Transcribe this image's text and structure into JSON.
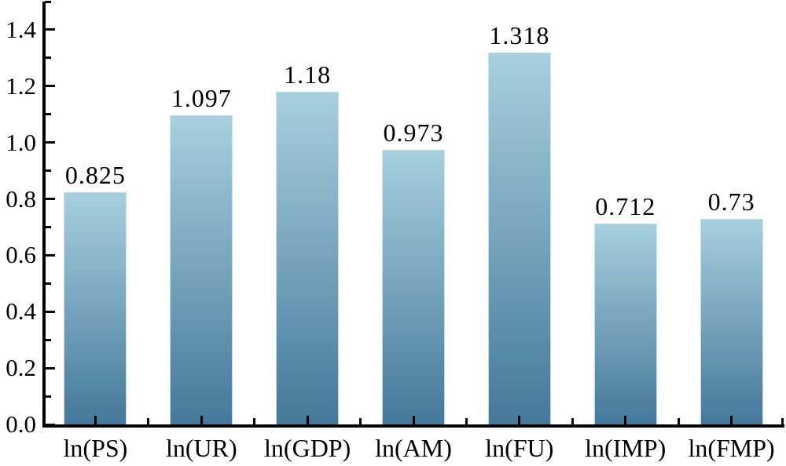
{
  "chart_data": {
    "type": "bar",
    "categories": [
      "ln(PS)",
      "ln(UR)",
      "ln(GDP)",
      "ln(AM)",
      "ln(FU)",
      "ln(IMP)",
      "ln(FMP)"
    ],
    "values": [
      0.825,
      1.097,
      1.18,
      0.973,
      1.318,
      0.712,
      0.73
    ],
    "data_labels": [
      "0.825",
      "1.097",
      "1.18",
      "0.973",
      "1.318",
      "0.712",
      "0.73"
    ],
    "title": "",
    "xlabel": "",
    "ylabel": "",
    "ylim": [
      0,
      1.5
    ],
    "yticks_major": [
      0.0,
      0.2,
      0.4,
      0.6,
      0.8,
      1.0,
      1.2,
      1.4
    ],
    "ytick_labels": [
      "0.0",
      "0.2",
      "0.4",
      "0.6",
      "0.8",
      "1.0",
      "1.2",
      "1.4"
    ],
    "ytick_minor_step": 0.1,
    "grid": false,
    "legend_position": "none",
    "colors": {
      "bar_gradient_top": "#a7d0de",
      "bar_gradient_bottom": "#44789a",
      "axis": "#000000",
      "text": "#000000",
      "background": "#ffffff"
    }
  }
}
